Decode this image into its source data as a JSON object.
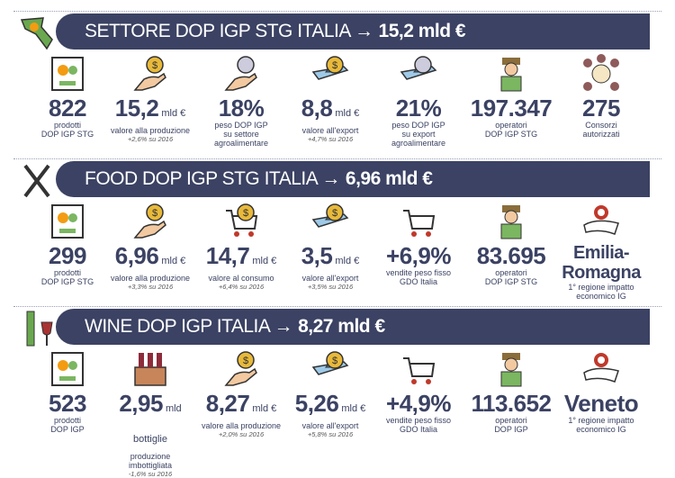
{
  "colors": {
    "banner": "#3b4263",
    "text": "#3b4263",
    "gold": "#e8b93a"
  },
  "sections": [
    {
      "title": "SETTORE DOP IGP STG ITALIA →",
      "highlight": "15,2 mld €",
      "icon": "italy-map-icon",
      "items": [
        {
          "icon": "abacus-icon",
          "value": "822",
          "unit": "",
          "label": "prodotti\nDOP IGP STG",
          "note": ""
        },
        {
          "icon": "hand-coin-icon",
          "value": "15,2",
          "unit": "mld €",
          "label": "valore alla produzione",
          "note": "+2,6% su 2016"
        },
        {
          "icon": "hand-globe-icon",
          "value": "18%",
          "unit": "",
          "label": "peso DOP IGP\nsu settore\nagroalimentare",
          "note": ""
        },
        {
          "icon": "plane-coin-icon",
          "value": "8,8",
          "unit": "mld €",
          "label": "valore all'export",
          "note": "+4,7% su 2016"
        },
        {
          "icon": "plane-globe-icon",
          "value": "21%",
          "unit": "",
          "label": "peso DOP IGP\nsu export\nagroalimentare",
          "note": ""
        },
        {
          "icon": "farmer-icon",
          "value": "197.347",
          "unit": "",
          "label": "operatori\nDOP IGP STG",
          "note": ""
        },
        {
          "icon": "consortium-icon",
          "value": "275",
          "unit": "",
          "label": "Consorzi\nautorizzati",
          "note": ""
        }
      ]
    },
    {
      "title": "FOOD DOP IGP STG ITALIA →",
      "highlight": "6,96 mld €",
      "icon": "fork-knife-icon",
      "items": [
        {
          "icon": "abacus-icon",
          "value": "299",
          "unit": "",
          "label": "prodotti\nDOP IGP STG",
          "note": ""
        },
        {
          "icon": "hand-coin-icon",
          "value": "6,96",
          "unit": "mld €",
          "label": "valore alla produzione",
          "note": "+3,3% su 2016"
        },
        {
          "icon": "cart-coin-icon",
          "value": "14,7",
          "unit": "mld €",
          "label": "valore al consumo",
          "note": "+6,4% su 2016"
        },
        {
          "icon": "plane-coin-icon",
          "value": "3,5",
          "unit": "mld €",
          "label": "valore all'export",
          "note": "+3,5% su 2016"
        },
        {
          "icon": "cart-food-icon",
          "value": "+6,9%",
          "unit": "",
          "label": "vendite peso fisso\nGDO Italia",
          "note": ""
        },
        {
          "icon": "farmer-fork-icon",
          "value": "83.695",
          "unit": "",
          "label": "operatori\nDOP IGP STG",
          "note": ""
        },
        {
          "icon": "region-pin-icon",
          "value": "Emilia-\nRomagna",
          "unit": "",
          "label": "1° regione impatto\neconomico IG",
          "note": ""
        }
      ]
    },
    {
      "title": "WINE DOP IGP ITALIA →",
      "highlight": "8,27 mld €",
      "icon": "wine-bottle-glass-icon",
      "items": [
        {
          "icon": "abacus-icon",
          "value": "523",
          "unit": "",
          "label": "prodotti\nDOP IGP",
          "note": ""
        },
        {
          "icon": "wine-crate-icon",
          "value": "2,95",
          "unit": "mld bottiglie",
          "label": "produzione\nimbottigliata",
          "note": "-1,6% su 2016"
        },
        {
          "icon": "hand-coin-icon",
          "value": "8,27",
          "unit": "mld €",
          "label": "valore alla produzione",
          "note": "+2,0% su 2016"
        },
        {
          "icon": "plane-coin-icon",
          "value": "5,26",
          "unit": "mld €",
          "label": "valore all'export",
          "note": "+5,8% su 2016"
        },
        {
          "icon": "cart-wine-icon",
          "value": "+4,9%",
          "unit": "",
          "label": "vendite peso fisso\nGDO Italia",
          "note": ""
        },
        {
          "icon": "farmer-wine-icon",
          "value": "113.652",
          "unit": "",
          "label": "operatori\nDOP IGP",
          "note": ""
        },
        {
          "icon": "region-pin-icon",
          "value": "Veneto",
          "unit": "",
          "label": "1° regione impatto\neconomico IG",
          "note": ""
        }
      ]
    }
  ]
}
